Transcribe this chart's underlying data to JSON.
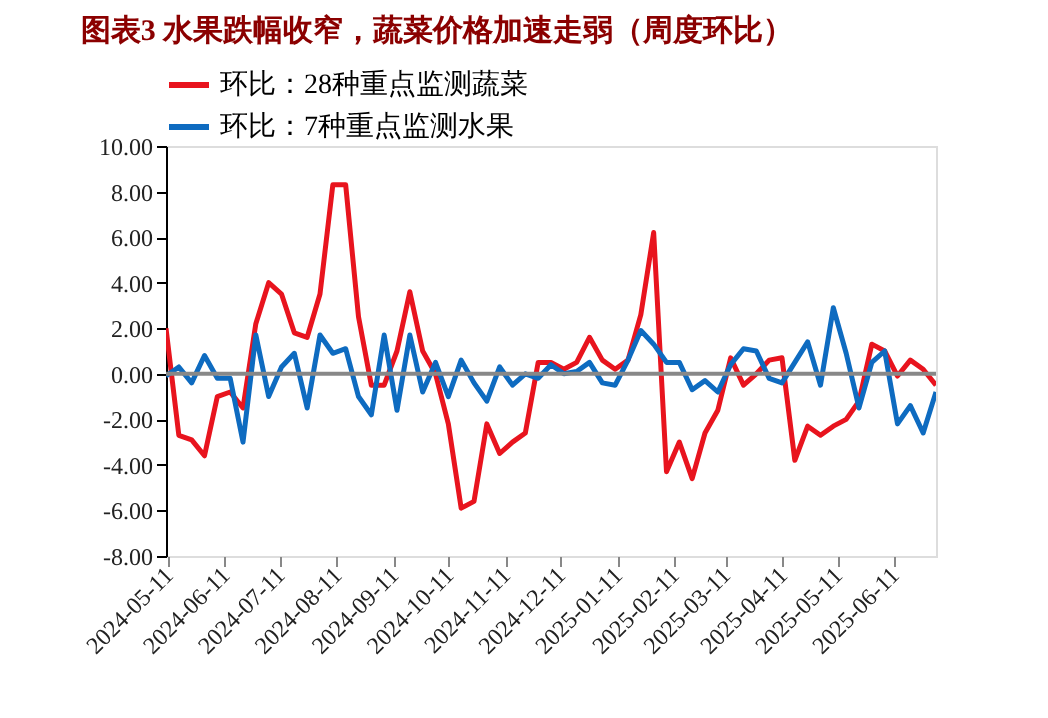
{
  "chart_data": {
    "type": "line",
    "title": "图表3 水果跌幅收窄，蔬菜价格加速走弱（周度环比）",
    "x": [
      "2024-05-10",
      "2024-05-17",
      "2024-05-24",
      "2024-05-31",
      "2024-06-07",
      "2024-06-14",
      "2024-06-21",
      "2024-06-28",
      "2024-07-05",
      "2024-07-12",
      "2024-07-19",
      "2024-07-26",
      "2024-08-02",
      "2024-08-09",
      "2024-08-16",
      "2024-08-23",
      "2024-08-30",
      "2024-09-06",
      "2024-09-13",
      "2024-09-20",
      "2024-09-27",
      "2024-10-04",
      "2024-10-11",
      "2024-10-18",
      "2024-10-25",
      "2024-11-01",
      "2024-11-08",
      "2024-11-15",
      "2024-11-22",
      "2024-11-29",
      "2024-12-06",
      "2024-12-13",
      "2024-12-20",
      "2024-12-27",
      "2025-01-03",
      "2025-01-10",
      "2025-01-17",
      "2025-01-24",
      "2025-01-31",
      "2025-02-07",
      "2025-02-14",
      "2025-02-21",
      "2025-02-28",
      "2025-03-07",
      "2025-03-14",
      "2025-03-21",
      "2025-03-28",
      "2025-04-04",
      "2025-04-11",
      "2025-04-18",
      "2025-04-25",
      "2025-05-02",
      "2025-05-09",
      "2025-05-16",
      "2025-05-23",
      "2025-05-30",
      "2025-06-06",
      "2025-06-13",
      "2025-06-20",
      "2025-06-27",
      "2025-07-04"
    ],
    "series": [
      {
        "name": "环比：28种重点监测蔬菜",
        "color": "#e8141e",
        "values": [
          2.0,
          -2.7,
          -2.9,
          -3.6,
          -1.0,
          -0.8,
          -1.5,
          2.2,
          4.0,
          3.5,
          1.8,
          1.6,
          3.5,
          8.3,
          8.3,
          2.5,
          -0.5,
          -0.5,
          1.0,
          3.6,
          1.0,
          0,
          -2.2,
          -5.9,
          -5.6,
          -2.2,
          -3.5,
          -3.0,
          -2.6,
          0.5,
          0.5,
          0.2,
          0.5,
          1.6,
          0.6,
          0.2,
          0.6,
          2.6,
          6.2,
          -4.3,
          -3.0,
          -4.6,
          -2.6,
          -1.6,
          0.7,
          -0.5,
          0,
          0.6,
          0.7,
          -3.8,
          -2.3,
          -2.7,
          -2.3,
          -2.0,
          -1.2,
          1.3,
          1.0,
          -0.1,
          0.6,
          0.2,
          -0.5
        ]
      },
      {
        "name": "环比：7种重点监测水果",
        "color": "#0e6bc0",
        "values": [
          -0.1,
          0.3,
          -0.4,
          0.8,
          -0.2,
          -0.2,
          -3.0,
          1.7,
          -1.0,
          0.3,
          0.9,
          -1.5,
          1.7,
          0.9,
          1.1,
          -1.0,
          -1.8,
          1.7,
          -1.6,
          1.7,
          -0.8,
          0.5,
          -1.0,
          0.6,
          -0.4,
          -1.2,
          0.3,
          -0.5,
          0,
          -0.2,
          0.4,
          0,
          0.1,
          0.5,
          -0.4,
          -0.5,
          0.6,
          1.9,
          1.3,
          0.5,
          0.5,
          -0.7,
          -0.3,
          -0.8,
          0.4,
          1.1,
          1.0,
          -0.2,
          -0.4,
          0.5,
          1.4,
          -0.5,
          2.9,
          0.9,
          -1.5,
          0.5,
          1.0,
          -2.2,
          -1.4,
          -2.6,
          -0.8
        ]
      }
    ],
    "xlim": [
      "2024-05-10",
      "2025-07-04"
    ],
    "xticks": [
      {
        "value": "2024-05-11",
        "label": "2024-05-11"
      },
      {
        "value": "2024-06-11",
        "label": "2024-06-11"
      },
      {
        "value": "2024-07-11",
        "label": "2024-07-11"
      },
      {
        "value": "2024-08-11",
        "label": "2024-08-11"
      },
      {
        "value": "2024-09-11",
        "label": "2024-09-11"
      },
      {
        "value": "2024-10-11",
        "label": "2024-10-11"
      },
      {
        "value": "2024-11-11",
        "label": "2024-11-11"
      },
      {
        "value": "2024-12-11",
        "label": "2024-12-11"
      },
      {
        "value": "2025-01-11",
        "label": "2025-01-11"
      },
      {
        "value": "2025-02-11",
        "label": "2025-02-11"
      },
      {
        "value": "2025-03-11",
        "label": "2025-03-11"
      },
      {
        "value": "2025-04-11",
        "label": "2025-04-11"
      },
      {
        "value": "2025-05-11",
        "label": "2025-05-11"
      },
      {
        "value": "2025-06-11",
        "label": "2025-06-11"
      }
    ],
    "ylim": [
      -8,
      10
    ],
    "yticks": [
      {
        "value": -8,
        "label": "-8.00"
      },
      {
        "value": -6,
        "label": "-6.00"
      },
      {
        "value": -4,
        "label": "-4.00"
      },
      {
        "value": -2,
        "label": "-2.00"
      },
      {
        "value": 0,
        "label": "0.00"
      },
      {
        "value": 2,
        "label": "2.00"
      },
      {
        "value": 4,
        "label": "4.00"
      },
      {
        "value": 6,
        "label": "6.00"
      },
      {
        "value": 8,
        "label": "8.00"
      },
      {
        "value": 10,
        "label": "10.00"
      }
    ],
    "ref_lines": [
      {
        "axis": "y",
        "value": 0,
        "color": "#888888"
      }
    ],
    "grid": false,
    "legend": "top",
    "marker": "none",
    "line_style": "solid"
  }
}
